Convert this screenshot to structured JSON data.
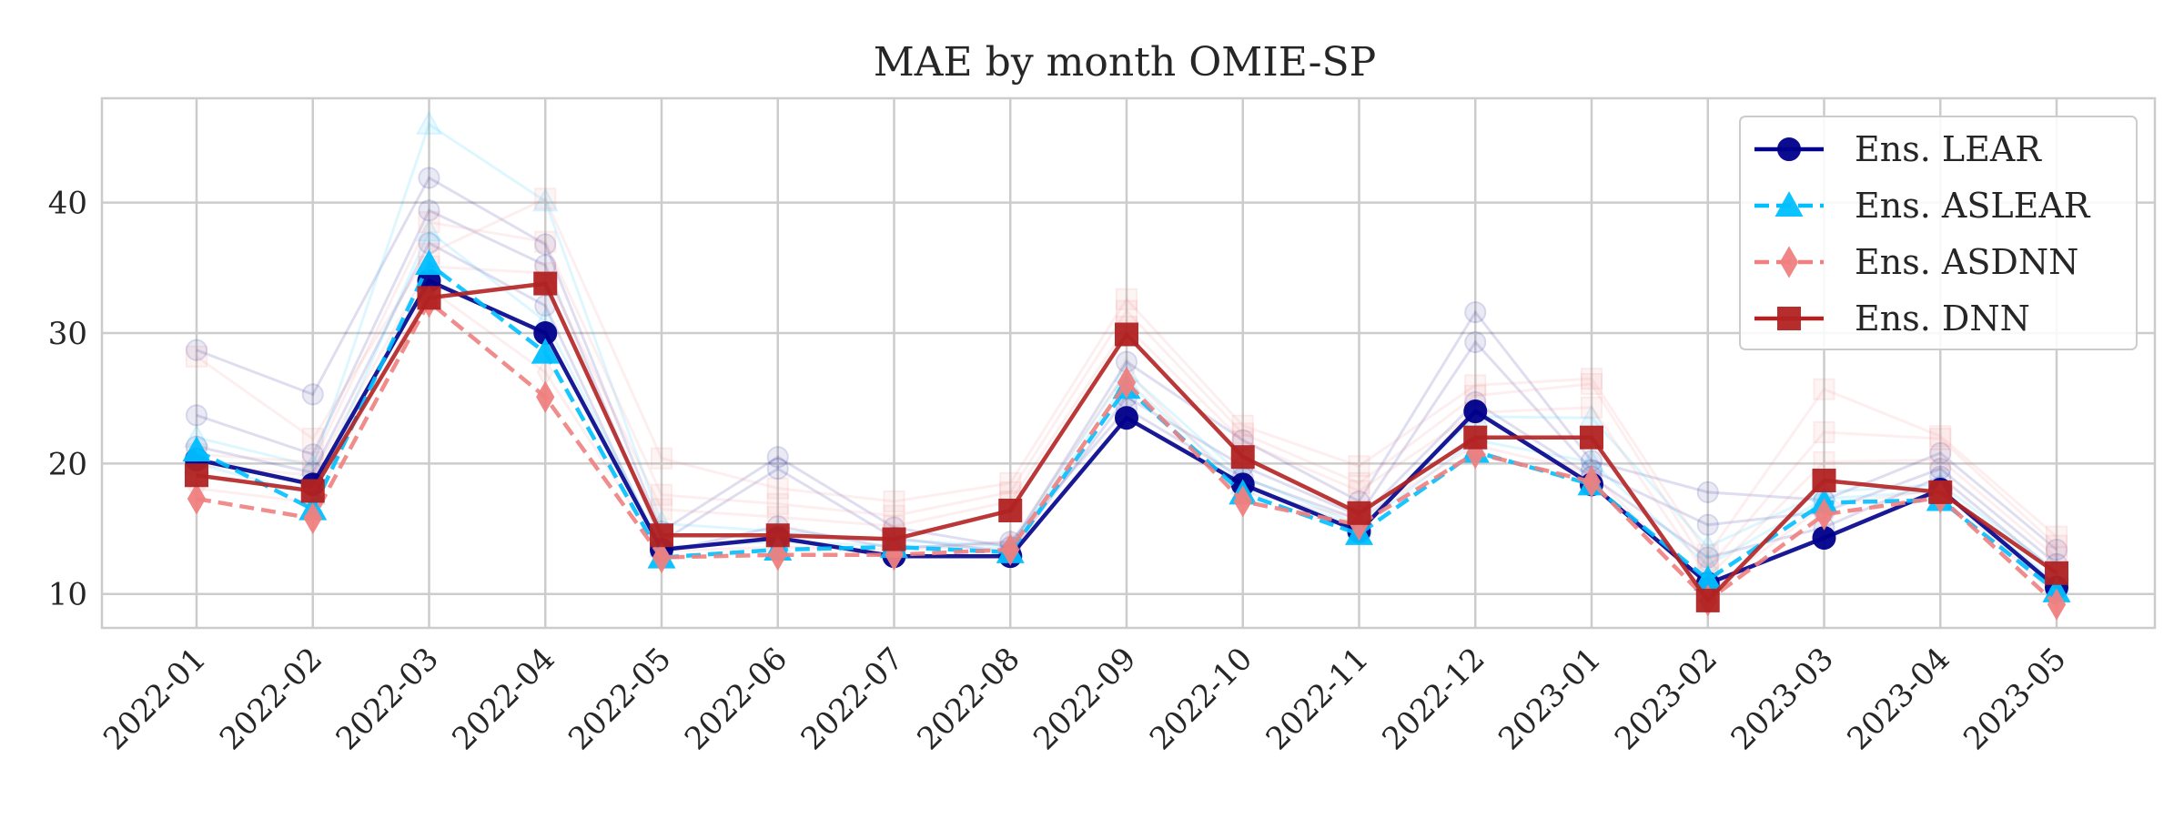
{
  "chart_data": {
    "type": "line",
    "title": "MAE by month OMIE-SP",
    "xlabel": "",
    "ylabel": "",
    "categories": [
      "2022-01",
      "2022-02",
      "2022-03",
      "2022-04",
      "2022-05",
      "2022-06",
      "2022-07",
      "2022-08",
      "2022-09",
      "2022-10",
      "2022-11",
      "2022-12",
      "2023-01",
      "2023-02",
      "2023-03",
      "2023-04",
      "2023-05"
    ],
    "ylim": [
      7.4,
      48.0
    ],
    "yticks": [
      10,
      20,
      30,
      40
    ],
    "grid": true,
    "legend_position": "top-right",
    "series": [
      {
        "name": "Ens. LEAR",
        "color": "#00008b",
        "marker": "circle",
        "dash": "solid",
        "values": [
          20.3,
          18.4,
          34.0,
          30.0,
          13.4,
          14.3,
          12.9,
          12.9,
          23.5,
          18.4,
          14.8,
          24.0,
          18.4,
          10.8,
          14.3,
          18.0,
          10.5
        ]
      },
      {
        "name": "Ens. ASLEAR",
        "color": "#00bfff",
        "marker": "triangle",
        "dash": "dashed",
        "values": [
          21.0,
          16.5,
          35.3,
          28.5,
          12.8,
          13.4,
          13.6,
          13.2,
          25.8,
          17.7,
          14.6,
          20.9,
          18.4,
          11.1,
          17.0,
          17.2,
          10.2
        ]
      },
      {
        "name": "Ens. ASDNN",
        "color": "#f08080",
        "marker": "diamond",
        "dash": "dashed",
        "values": [
          17.3,
          15.8,
          32.4,
          25.1,
          12.8,
          13.0,
          13.0,
          13.4,
          26.2,
          17.1,
          15.3,
          20.8,
          18.6,
          9.5,
          16.1,
          17.4,
          9.2
        ]
      },
      {
        "name": "Ens. DNN",
        "color": "#b22222",
        "marker": "square",
        "dash": "solid",
        "values": [
          19.1,
          17.9,
          32.7,
          33.8,
          14.5,
          14.5,
          14.2,
          16.4,
          29.9,
          20.5,
          16.2,
          22.0,
          22.0,
          9.5,
          18.7,
          17.8,
          11.6
        ]
      }
    ],
    "background_series": [
      {
        "color": "#00008b",
        "marker": "circle",
        "values": [
          28.7,
          25.3,
          41.9,
          36.8,
          14.8,
          20.5,
          15.1,
          13.6,
          27.8,
          21.8,
          17.1,
          31.6,
          20.2,
          17.8,
          17.2,
          20.8,
          13.4
        ]
      },
      {
        "color": "#00008b",
        "marker": "circle",
        "values": [
          23.7,
          20.7,
          39.4,
          35.2,
          14.0,
          19.6,
          14.3,
          13.2,
          25.1,
          19.8,
          16.0,
          29.3,
          19.5,
          15.3,
          16.3,
          19.6,
          12.3
        ]
      },
      {
        "color": "#00008b",
        "marker": "circle",
        "values": [
          21.3,
          19.3,
          36.9,
          32.1,
          13.2,
          15.2,
          13.5,
          14.0,
          24.2,
          18.9,
          15.7,
          24.7,
          19.0,
          12.8,
          15.1,
          19.0,
          11.6
        ]
      },
      {
        "color": "#00bfff",
        "marker": "triangle",
        "values": [
          22.0,
          19.8,
          46.0,
          40.1,
          15.4,
          14.8,
          14.1,
          13.7,
          27.0,
          19.0,
          15.3,
          23.6,
          23.5,
          13.6,
          17.8,
          18.4,
          11.8
        ]
      },
      {
        "color": "#00bfff",
        "marker": "triangle",
        "values": [
          20.0,
          17.6,
          37.8,
          30.9,
          13.6,
          14.0,
          13.7,
          13.5,
          26.3,
          18.4,
          15.1,
          21.8,
          20.1,
          12.2,
          17.3,
          17.9,
          10.9
        ]
      },
      {
        "color": "#f08080",
        "marker": "square",
        "values": [
          28.2,
          21.9,
          36.1,
          40.3,
          20.4,
          18.1,
          17.1,
          18.5,
          32.6,
          22.9,
          19.8,
          26.0,
          26.5,
          13.0,
          25.7,
          22.1,
          14.4
        ]
      },
      {
        "color": "#f08080",
        "marker": "square",
        "values": [
          20.7,
          20.1,
          38.5,
          37.0,
          17.6,
          16.9,
          16.0,
          17.8,
          31.7,
          22.3,
          18.5,
          25.2,
          26.1,
          12.0,
          22.4,
          21.9,
          13.7
        ]
      },
      {
        "color": "#f08080",
        "marker": "square",
        "values": [
          19.9,
          19.1,
          35.1,
          34.6,
          16.5,
          15.9,
          15.2,
          17.1,
          30.5,
          21.7,
          17.9,
          23.9,
          24.3,
          11.3,
          20.1,
          20.3,
          12.8
        ]
      },
      {
        "color": "#f08080",
        "marker": "diamond",
        "values": [
          18.1,
          17.0,
          33.4,
          27.0,
          13.3,
          13.6,
          13.4,
          13.9,
          27.1,
          17.8,
          15.8,
          21.4,
          19.3,
          10.2,
          16.8,
          18.0,
          9.8
        ]
      }
    ]
  }
}
